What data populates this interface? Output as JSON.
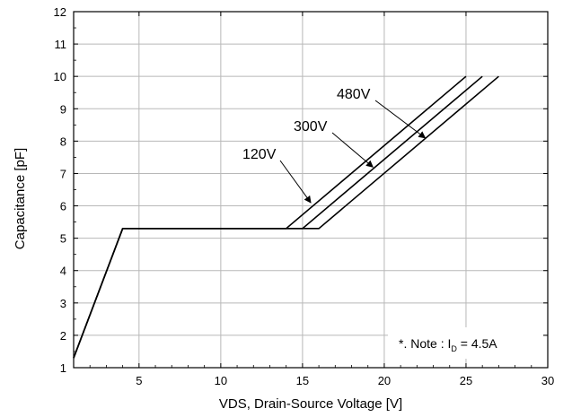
{
  "chart_data": {
    "type": "line",
    "xlabel": "VDS, Drain-Source Voltage [V]",
    "ylabel": "Capacitance [pF]",
    "xlim": [
      1,
      30
    ],
    "ylim": [
      1,
      12
    ],
    "xticks": [
      5,
      10,
      15,
      20,
      25,
      30
    ],
    "yticks": [
      1,
      2,
      3,
      4,
      5,
      6,
      7,
      8,
      9,
      10,
      11,
      12
    ],
    "grid": true,
    "series": [
      {
        "name": "120V",
        "x": [
          1,
          4,
          14,
          25
        ],
        "y": [
          1.3,
          5.3,
          5.3,
          10
        ]
      },
      {
        "name": "300V",
        "x": [
          1,
          4,
          15,
          26
        ],
        "y": [
          1.3,
          5.3,
          5.3,
          10
        ]
      },
      {
        "name": "480V",
        "x": [
          1,
          4,
          16,
          27
        ],
        "y": [
          1.3,
          5.3,
          5.3,
          10
        ]
      }
    ],
    "annotations": [
      {
        "label": "480V",
        "points_to": [
          22.5,
          8.1
        ]
      },
      {
        "label": "300V",
        "points_to": [
          19.3,
          7.2
        ]
      },
      {
        "label": "120V",
        "points_to": [
          15.5,
          6.1
        ]
      }
    ],
    "note": {
      "prefix": "*. Note : I",
      "subscript": "D",
      "suffix": " = 4.5A"
    }
  }
}
